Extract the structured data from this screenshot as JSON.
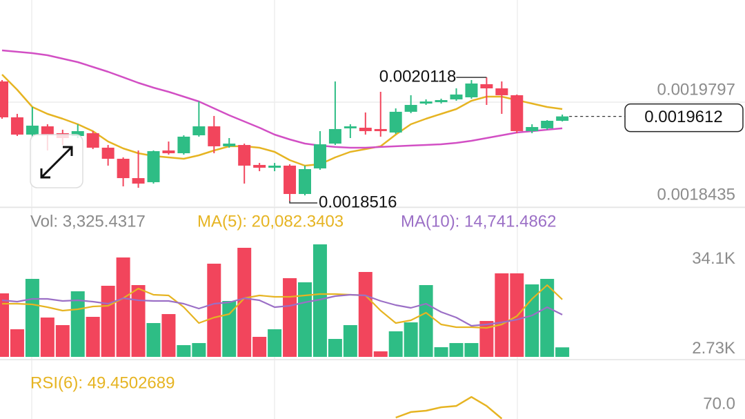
{
  "chart_data": [
    {
      "type": "candlestick",
      "open": [
        0.0020066,
        0.00196,
        0.0019376,
        0.0019483,
        0.0019394,
        0.0019358,
        0.0019394,
        0.0019206,
        0.0019062,
        0.0018811,
        0.0018758,
        0.001917,
        0.0019134,
        0.0019367,
        0.0019483,
        0.0019224,
        0.0019241,
        0.0018982,
        0.0018946,
        0.0018973,
        0.0018605,
        0.0018937,
        0.0019259,
        0.0019457,
        0.0019465,
        0.0019448,
        0.0019403,
        0.0019672,
        0.0019779,
        0.0019797,
        0.0019833,
        0.001986,
        0.002003,
        0.0019976,
        0.0019887,
        0.0019421,
        0.0019457,
        0.0019555
      ],
      "high": [
        0.0020084,
        0.0019645,
        0.0019734,
        0.001951,
        0.0019439,
        0.001951,
        0.0019421,
        0.0019241,
        0.001908,
        0.001917,
        0.001917,
        0.0019286,
        0.0019367,
        0.0019806,
        0.0019618,
        0.0019331,
        0.0019259,
        0.0019008,
        0.0019008,
        0.0018991,
        0.0018973,
        0.0019421,
        0.0020066,
        0.001951,
        0.0019663,
        0.0019931,
        0.0019716,
        0.0019887,
        0.0019833,
        0.0019842,
        0.0019976,
        0.0020084,
        0.0020118,
        0.0020066,
        0.0019896,
        0.001951,
        0.0019564,
        0.0019636
      ],
      "low": [
        0.0019582,
        0.0019358,
        0.0019349,
        0.001917,
        0.0019241,
        0.0019331,
        0.0019188,
        0.0018973,
        0.0018704,
        0.0018686,
        0.001874,
        0.0019116,
        0.0019116,
        0.0019349,
        0.0019134,
        0.0019206,
        0.001874,
        0.0018901,
        0.0018901,
        0.0018516,
        0.0018587,
        0.0018919,
        0.0019241,
        0.0019331,
        0.0019376,
        0.0019349,
        0.0019385,
        0.0019654,
        0.0019761,
        0.0019779,
        0.0019815,
        0.0019842,
        0.0019761,
        0.0019645,
        0.0019394,
        0.0019394,
        0.0019439,
        0.0019546
      ],
      "close": [
        0.00196,
        0.0019376,
        0.0019492,
        0.0019367,
        0.0019331,
        0.0019421,
        0.0019206,
        0.0019062,
        0.0018811,
        0.001874,
        0.0019161,
        0.0019134,
        0.0019349,
        0.0019483,
        0.0019224,
        0.0019259,
        0.0018973,
        0.0018946,
        0.0018973,
        0.0018605,
        0.0018928,
        0.001925,
        0.0019448,
        0.0019483,
        0.0019421,
        0.0019421,
        0.0019672,
        0.0019761,
        0.0019806,
        0.0019824,
        0.0019896,
        0.0020039,
        0.0019976,
        0.0019887,
        0.0019421,
        0.0019474,
        0.0019555,
        0.0019612
      ],
      "up_color": "#2ebd85",
      "down_color": "#f2455c",
      "lines": [
        {
          "color": "#e6b422",
          "values": [
            0.0020155,
            0.0019958,
            0.0019734,
            0.0019645,
            0.0019582,
            0.001951,
            0.0019421,
            0.0019286,
            0.0019197,
            0.0019134,
            0.0019098,
            0.001908,
            0.0019062,
            0.0019107,
            0.001917,
            0.0019224,
            0.0019224,
            0.0019206,
            0.0019152,
            0.0019044,
            0.0018973,
            0.0018991,
            0.001908,
            0.0019152,
            0.0019188,
            0.0019224,
            0.0019376,
            0.001951,
            0.0019582,
            0.0019645,
            0.0019707,
            0.0019815,
            0.0019869,
            0.0019869,
            0.0019824,
            0.0019779,
            0.0019734,
            0.0019707
          ]
        },
        {
          "color": "#d24fc4",
          "values": [
            0.0020469,
            0.0020451,
            0.0020433,
            0.0020406,
            0.0020361,
            0.0020317,
            0.0020254,
            0.0020191,
            0.002012,
            0.0020048,
            0.0019985,
            0.0019931,
            0.0019869,
            0.0019806,
            0.0019716,
            0.0019627,
            0.0019546,
            0.0019465,
            0.0019376,
            0.0019313,
            0.0019259,
            0.0019233,
            0.0019215,
            0.0019206,
            0.0019206,
            0.0019215,
            0.0019224,
            0.0019233,
            0.0019241,
            0.001925,
            0.0019268,
            0.0019295,
            0.0019331,
            0.0019367,
            0.0019403,
            0.0019421,
            0.0019439,
            0.0019457
          ]
        }
      ],
      "ylim": [
        0.0018435,
        0.0021123
      ],
      "yticks": [
        0.0018435,
        0.0019797
      ],
      "grid": true
    },
    {
      "type": "bar",
      "up_color": "#2ebd85",
      "down_color": "#f2455c",
      "series": [
        {
          "name": "Vol: 3,325.4317",
          "color": "#8a8a8a",
          "values": [
            22195,
            9650,
            27260,
            13750,
            11100,
            22920,
            13990,
            24850,
            34740,
            25090,
            11820,
            14960,
            4100,
            4830,
            32570,
            19540,
            38120,
            7000,
            9650,
            27500,
            26060,
            39320,
            6270,
            11100,
            29670,
            1930,
            8930,
            12060,
            25090,
            3380,
            4830,
            4830,
            12550,
            29190,
            29190,
            25330,
            27260,
            3325.4317
          ]
        },
        {
          "name": "MA(5): 20,082.3403",
          "color": "#e6b422",
          "values": [
            18580,
            18580,
            18340,
            17370,
            16160,
            16650,
            17610,
            17850,
            20510,
            23880,
            21710,
            21470,
            17370,
            11820,
            13750,
            14960,
            20510,
            21470,
            20990,
            20990,
            21470,
            21950,
            21950,
            21710,
            21470,
            16160,
            11820,
            12790,
            15440,
            11340,
            10370,
            10370,
            10130,
            11340,
            14230,
            20260,
            25090,
            20082.3403
          ]
        },
        {
          "name": "MA(10): 14,741.4862",
          "color": "#9b6fc6",
          "values": [
            19780,
            19300,
            20260,
            20260,
            19540,
            19780,
            19300,
            18580,
            20510,
            19780,
            19540,
            19540,
            18580,
            16890,
            18580,
            19060,
            20510,
            19780,
            17370,
            17850,
            19060,
            20020,
            21230,
            21710,
            21470,
            19540,
            18090,
            17130,
            18580,
            15680,
            13750,
            10860,
            11340,
            12060,
            13030,
            14480,
            17370,
            14741.4862
          ]
        }
      ],
      "ylim": [
        0,
        42700
      ],
      "yticks": [
        {
          "value": 2730,
          "label": "2.73K"
        },
        {
          "value": 34100,
          "label": "34.1K"
        }
      ]
    },
    {
      "type": "line",
      "series": [
        {
          "name": "RSI(6): 49.4502689",
          "color": "#e6b422",
          "values": [
            null,
            null,
            null,
            null,
            null,
            null,
            null,
            null,
            null,
            null,
            null,
            null,
            null,
            null,
            null,
            null,
            null,
            null,
            null,
            null,
            null,
            null,
            null,
            null,
            null,
            null,
            56.1,
            62.0,
            63.4,
            67.1,
            68.5,
            78.0,
            68.5,
            55,
            null,
            null,
            null,
            49.4502689
          ]
        }
      ],
      "ylim": [
        0,
        100
      ],
      "yticks": [
        {
          "value": 70,
          "label": "70.0"
        }
      ]
    }
  ]
}
